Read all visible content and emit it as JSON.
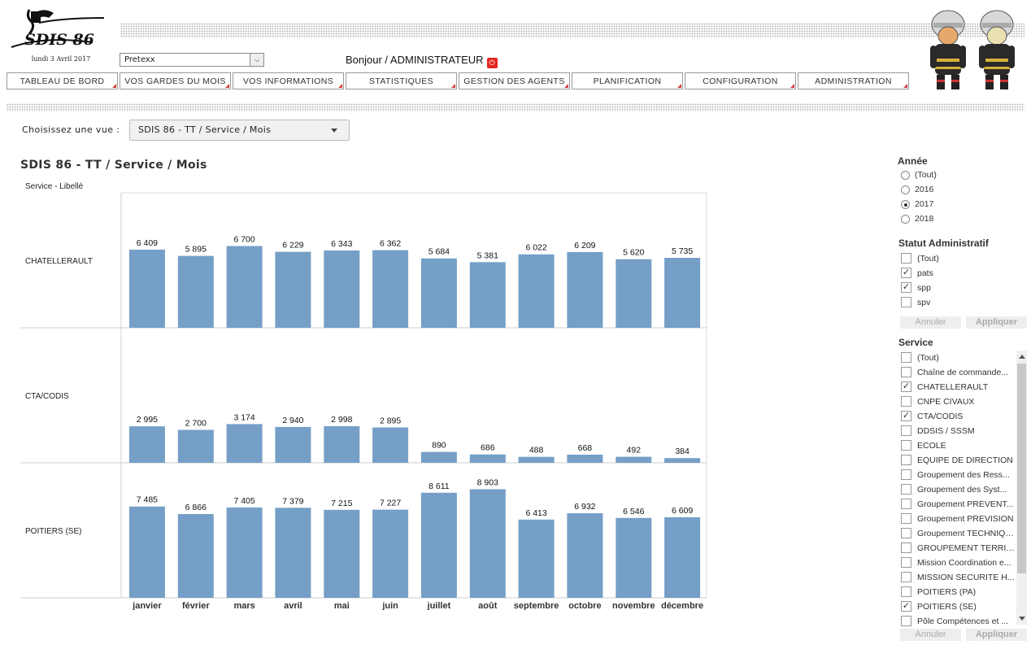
{
  "header": {
    "logo_text": "SDIS 86",
    "date": "lundi 3 Avril 2017",
    "user_select_value": "Pretexx",
    "greeting": "Bonjour / ADMINISTRATEUR"
  },
  "nav": {
    "items": [
      {
        "label": "TABLEAU DE BORD"
      },
      {
        "label": "VOS GARDES DU MOIS"
      },
      {
        "label": "VOS INFORMATIONS"
      },
      {
        "label": "STATISTIQUES"
      },
      {
        "label": "GESTION DES AGENTS"
      },
      {
        "label": "PLANIFICATION"
      },
      {
        "label": "CONFIGURATION"
      },
      {
        "label": "ADMINISTRATION"
      }
    ]
  },
  "view": {
    "label": "Choisissez une vue :",
    "selected": "SDIS 86 - TT / Service / Mois"
  },
  "chart_data": {
    "type": "bar",
    "title": "SDIS 86 - TT / Service / Mois",
    "row_header": "Service - Libellé",
    "categories": [
      "janvier",
      "février",
      "mars",
      "avril",
      "mai",
      "juin",
      "juillet",
      "août",
      "septembre",
      "octobre",
      "novembre",
      "décembre"
    ],
    "panels": [
      {
        "name": "CHATELLERAULT",
        "values": [
          6409,
          5895,
          6700,
          6229,
          6343,
          6362,
          5684,
          5381,
          6022,
          6209,
          5620,
          5735
        ],
        "labels": [
          "6 409",
          "5 895",
          "6 700",
          "6 229",
          "6 343",
          "6 362",
          "5 684",
          "5 381",
          "6 022",
          "6 209",
          "5 620",
          "5 735"
        ]
      },
      {
        "name": "CTA/CODIS",
        "values": [
          2995,
          2700,
          3174,
          2940,
          2998,
          2895,
          890,
          686,
          488,
          668,
          492,
          384
        ],
        "labels": [
          "2 995",
          "2 700",
          "3 174",
          "2 940",
          "2 998",
          "2 895",
          "890",
          "686",
          "488",
          "668",
          "492",
          "384"
        ]
      },
      {
        "name": "POITIERS (SE)",
        "values": [
          7485,
          6866,
          7405,
          7379,
          7215,
          7227,
          8611,
          8903,
          6413,
          6932,
          6546,
          6609
        ],
        "labels": [
          "7 485",
          "6 866",
          "7 405",
          "7 379",
          "7 215",
          "7 227",
          "8 611",
          "8 903",
          "6 413",
          "6 932",
          "6 546",
          "6 609"
        ]
      }
    ],
    "ylim": [
      0,
      10000
    ],
    "bar_color": "#759fc7",
    "grid": false,
    "legend": "none"
  },
  "filters": {
    "annee": {
      "title": "Année",
      "options": [
        {
          "label": "(Tout)",
          "selected": false
        },
        {
          "label": "2016",
          "selected": false
        },
        {
          "label": "2017",
          "selected": true
        },
        {
          "label": "2018",
          "selected": false
        }
      ]
    },
    "statut": {
      "title": "Statut Administratif",
      "options": [
        {
          "label": "(Tout)",
          "checked": false
        },
        {
          "label": "pats",
          "checked": true
        },
        {
          "label": "spp",
          "checked": true
        },
        {
          "label": "spv",
          "checked": false
        }
      ],
      "cancel": "Annuler",
      "apply": "Appliquer"
    },
    "service": {
      "title": "Service",
      "options": [
        {
          "label": "(Tout)",
          "checked": false
        },
        {
          "label": "Chaîne de commande...",
          "checked": false
        },
        {
          "label": "CHATELLERAULT",
          "checked": true
        },
        {
          "label": "CNPE CIVAUX",
          "checked": false
        },
        {
          "label": "CTA/CODIS",
          "checked": true
        },
        {
          "label": "DDSIS / SSSM",
          "checked": false
        },
        {
          "label": "ECOLE",
          "checked": false
        },
        {
          "label": "EQUIPE DE DIRECTION",
          "checked": false
        },
        {
          "label": "Groupement des Ress...",
          "checked": false
        },
        {
          "label": "Groupement des Syst...",
          "checked": false
        },
        {
          "label": "Groupement PREVENT...",
          "checked": false
        },
        {
          "label": "Groupement PREVISION",
          "checked": false
        },
        {
          "label": "Groupement TECHNIQUE",
          "checked": false
        },
        {
          "label": "GROUPEMENT TERRIT...",
          "checked": false
        },
        {
          "label": "Mission Coordination e...",
          "checked": false
        },
        {
          "label": "MISSION SECURITE H...",
          "checked": false
        },
        {
          "label": "POITIERS (PA)",
          "checked": false
        },
        {
          "label": "POITIERS (SE)",
          "checked": true
        },
        {
          "label": "Pôle Compétences et ...",
          "checked": false
        }
      ],
      "cancel": "Annuler",
      "apply": "Appliquer"
    }
  }
}
